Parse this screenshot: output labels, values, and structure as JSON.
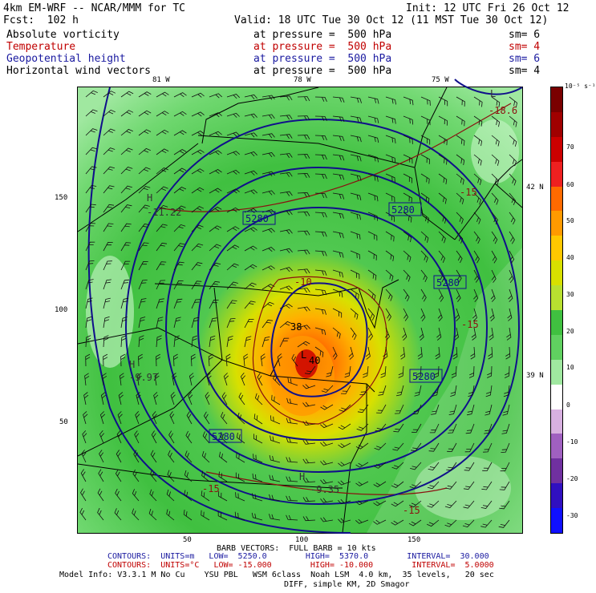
{
  "header": {
    "model": "4km EM-WRF -- NCAR/MMM for TC",
    "init": "Init: 12 UTC Fri 26 Oct 12",
    "fcst": "Fcst:  102 h",
    "valid": "Valid: 18 UTC Tue 30 Oct 12 (11 MST Tue 30 Oct 12)"
  },
  "fields": [
    {
      "name": "Absolute vorticity",
      "pressure": "at pressure =  500 hPa",
      "sm": "sm= 6",
      "color": "#000000"
    },
    {
      "name": "Temperature",
      "pressure": "at pressure =  500 hPa",
      "sm": "sm= 4",
      "color": "#c00000"
    },
    {
      "name": "Geopotential height",
      "pressure": "at pressure =  500 hPa",
      "sm": "sm= 6",
      "color": "#1a1aa0"
    },
    {
      "name": "Horizontal wind vectors",
      "pressure": "at pressure =  500 hPa",
      "sm": "sm= 4",
      "color": "#000000"
    }
  ],
  "map": {
    "top_lon_labels": [
      "81 W",
      "78 W",
      "75 W"
    ],
    "right_lat_labels": [
      "42 N",
      "39 N"
    ],
    "left_ticks": [
      "150",
      "100",
      "50"
    ],
    "bottom_ticks": [
      "50",
      "100",
      "150"
    ],
    "height_labels": [
      "5280",
      "5280",
      "5280",
      "5280",
      "5280"
    ],
    "temp_labels": [
      "-18.6",
      "-15",
      "-10",
      "-15",
      "-15",
      "-15"
    ],
    "extrema": [
      {
        "symbol": "H",
        "value": "-11.22"
      },
      {
        "symbol": "H",
        "value": "-9.97"
      },
      {
        "symbol": "H",
        "value": "-9.35"
      },
      {
        "symbol": "L",
        "value": "-18.6"
      }
    ],
    "center_labels": [
      "38",
      "40"
    ],
    "low_label": "L"
  },
  "colorbar": {
    "unit": "10⁻⁵ s⁻¹",
    "labels": [
      "70",
      "60",
      "50",
      "40",
      "30",
      "20",
      "10",
      "0",
      "-10",
      "-20",
      "-30"
    ],
    "colors": [
      "#7a0000",
      "#a00000",
      "#cc0000",
      "#ee2020",
      "#ff6a00",
      "#ff9a00",
      "#ffc800",
      "#d8e000",
      "#b8e030",
      "#40c040",
      "#60d060",
      "#a0e8a0",
      "#ffffff",
      "#d8b0e0",
      "#a060c0",
      "#7030a0",
      "#3010c0",
      "#1010ff"
    ]
  },
  "footer": {
    "barb": "BARB VECTORS:  FULL BARB = 10 kts",
    "contour1": "CONTOURS:  UNITS=m   LOW=  5250.0        HIGH=  5370.0        INTERVAL=  30.000",
    "contour2": "CONTOURS:  UNITS=°C   LOW= -15.000        HIGH= -10.000        INTERVAL=  5.0000",
    "model_info": "Model Info: V3.3.1 M No Cu    YSU PBL   WSM 6class  Noah LSM  4.0 km,  35 levels,   20 sec",
    "model_info2": "DIFF, simple KM, 2D Smagor"
  }
}
